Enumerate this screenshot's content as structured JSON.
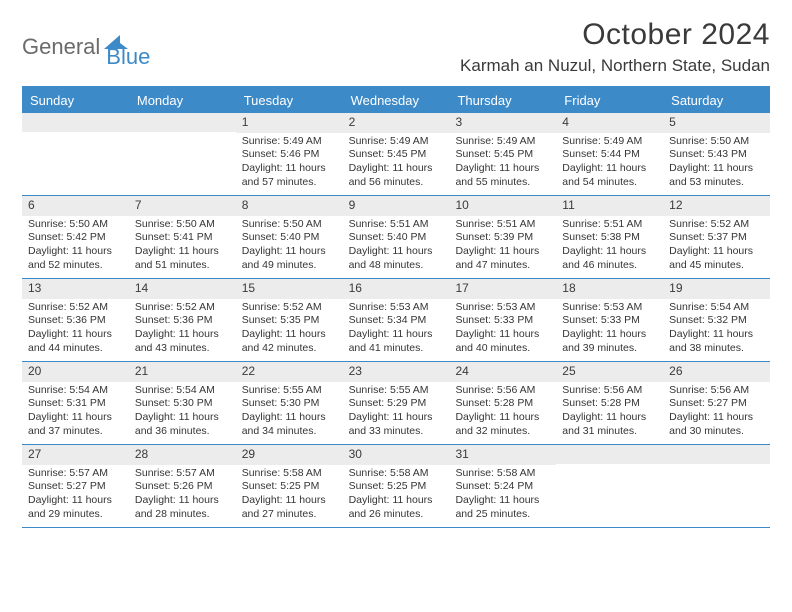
{
  "logo": {
    "part1": "General",
    "part2": "Blue"
  },
  "title": "October 2024",
  "location": "Karmah an Nuzul, Northern State, Sudan",
  "colors": {
    "accent": "#3d8ac9",
    "header_bg": "#3d8ac9",
    "header_text": "#ffffff",
    "daynum_bg": "#ececec",
    "text": "#353535",
    "border": "#3d8ac9"
  },
  "day_names": [
    "Sunday",
    "Monday",
    "Tuesday",
    "Wednesday",
    "Thursday",
    "Friday",
    "Saturday"
  ],
  "weeks": [
    [
      {
        "n": "",
        "sunrise": "",
        "sunset": "",
        "daylight": ""
      },
      {
        "n": "",
        "sunrise": "",
        "sunset": "",
        "daylight": ""
      },
      {
        "n": "1",
        "sunrise": "Sunrise: 5:49 AM",
        "sunset": "Sunset: 5:46 PM",
        "daylight": "Daylight: 11 hours and 57 minutes."
      },
      {
        "n": "2",
        "sunrise": "Sunrise: 5:49 AM",
        "sunset": "Sunset: 5:45 PM",
        "daylight": "Daylight: 11 hours and 56 minutes."
      },
      {
        "n": "3",
        "sunrise": "Sunrise: 5:49 AM",
        "sunset": "Sunset: 5:45 PM",
        "daylight": "Daylight: 11 hours and 55 minutes."
      },
      {
        "n": "4",
        "sunrise": "Sunrise: 5:49 AM",
        "sunset": "Sunset: 5:44 PM",
        "daylight": "Daylight: 11 hours and 54 minutes."
      },
      {
        "n": "5",
        "sunrise": "Sunrise: 5:50 AM",
        "sunset": "Sunset: 5:43 PM",
        "daylight": "Daylight: 11 hours and 53 minutes."
      }
    ],
    [
      {
        "n": "6",
        "sunrise": "Sunrise: 5:50 AM",
        "sunset": "Sunset: 5:42 PM",
        "daylight": "Daylight: 11 hours and 52 minutes."
      },
      {
        "n": "7",
        "sunrise": "Sunrise: 5:50 AM",
        "sunset": "Sunset: 5:41 PM",
        "daylight": "Daylight: 11 hours and 51 minutes."
      },
      {
        "n": "8",
        "sunrise": "Sunrise: 5:50 AM",
        "sunset": "Sunset: 5:40 PM",
        "daylight": "Daylight: 11 hours and 49 minutes."
      },
      {
        "n": "9",
        "sunrise": "Sunrise: 5:51 AM",
        "sunset": "Sunset: 5:40 PM",
        "daylight": "Daylight: 11 hours and 48 minutes."
      },
      {
        "n": "10",
        "sunrise": "Sunrise: 5:51 AM",
        "sunset": "Sunset: 5:39 PM",
        "daylight": "Daylight: 11 hours and 47 minutes."
      },
      {
        "n": "11",
        "sunrise": "Sunrise: 5:51 AM",
        "sunset": "Sunset: 5:38 PM",
        "daylight": "Daylight: 11 hours and 46 minutes."
      },
      {
        "n": "12",
        "sunrise": "Sunrise: 5:52 AM",
        "sunset": "Sunset: 5:37 PM",
        "daylight": "Daylight: 11 hours and 45 minutes."
      }
    ],
    [
      {
        "n": "13",
        "sunrise": "Sunrise: 5:52 AM",
        "sunset": "Sunset: 5:36 PM",
        "daylight": "Daylight: 11 hours and 44 minutes."
      },
      {
        "n": "14",
        "sunrise": "Sunrise: 5:52 AM",
        "sunset": "Sunset: 5:36 PM",
        "daylight": "Daylight: 11 hours and 43 minutes."
      },
      {
        "n": "15",
        "sunrise": "Sunrise: 5:52 AM",
        "sunset": "Sunset: 5:35 PM",
        "daylight": "Daylight: 11 hours and 42 minutes."
      },
      {
        "n": "16",
        "sunrise": "Sunrise: 5:53 AM",
        "sunset": "Sunset: 5:34 PM",
        "daylight": "Daylight: 11 hours and 41 minutes."
      },
      {
        "n": "17",
        "sunrise": "Sunrise: 5:53 AM",
        "sunset": "Sunset: 5:33 PM",
        "daylight": "Daylight: 11 hours and 40 minutes."
      },
      {
        "n": "18",
        "sunrise": "Sunrise: 5:53 AM",
        "sunset": "Sunset: 5:33 PM",
        "daylight": "Daylight: 11 hours and 39 minutes."
      },
      {
        "n": "19",
        "sunrise": "Sunrise: 5:54 AM",
        "sunset": "Sunset: 5:32 PM",
        "daylight": "Daylight: 11 hours and 38 minutes."
      }
    ],
    [
      {
        "n": "20",
        "sunrise": "Sunrise: 5:54 AM",
        "sunset": "Sunset: 5:31 PM",
        "daylight": "Daylight: 11 hours and 37 minutes."
      },
      {
        "n": "21",
        "sunrise": "Sunrise: 5:54 AM",
        "sunset": "Sunset: 5:30 PM",
        "daylight": "Daylight: 11 hours and 36 minutes."
      },
      {
        "n": "22",
        "sunrise": "Sunrise: 5:55 AM",
        "sunset": "Sunset: 5:30 PM",
        "daylight": "Daylight: 11 hours and 34 minutes."
      },
      {
        "n": "23",
        "sunrise": "Sunrise: 5:55 AM",
        "sunset": "Sunset: 5:29 PM",
        "daylight": "Daylight: 11 hours and 33 minutes."
      },
      {
        "n": "24",
        "sunrise": "Sunrise: 5:56 AM",
        "sunset": "Sunset: 5:28 PM",
        "daylight": "Daylight: 11 hours and 32 minutes."
      },
      {
        "n": "25",
        "sunrise": "Sunrise: 5:56 AM",
        "sunset": "Sunset: 5:28 PM",
        "daylight": "Daylight: 11 hours and 31 minutes."
      },
      {
        "n": "26",
        "sunrise": "Sunrise: 5:56 AM",
        "sunset": "Sunset: 5:27 PM",
        "daylight": "Daylight: 11 hours and 30 minutes."
      }
    ],
    [
      {
        "n": "27",
        "sunrise": "Sunrise: 5:57 AM",
        "sunset": "Sunset: 5:27 PM",
        "daylight": "Daylight: 11 hours and 29 minutes."
      },
      {
        "n": "28",
        "sunrise": "Sunrise: 5:57 AM",
        "sunset": "Sunset: 5:26 PM",
        "daylight": "Daylight: 11 hours and 28 minutes."
      },
      {
        "n": "29",
        "sunrise": "Sunrise: 5:58 AM",
        "sunset": "Sunset: 5:25 PM",
        "daylight": "Daylight: 11 hours and 27 minutes."
      },
      {
        "n": "30",
        "sunrise": "Sunrise: 5:58 AM",
        "sunset": "Sunset: 5:25 PM",
        "daylight": "Daylight: 11 hours and 26 minutes."
      },
      {
        "n": "31",
        "sunrise": "Sunrise: 5:58 AM",
        "sunset": "Sunset: 5:24 PM",
        "daylight": "Daylight: 11 hours and 25 minutes."
      },
      {
        "n": "",
        "sunrise": "",
        "sunset": "",
        "daylight": ""
      },
      {
        "n": "",
        "sunrise": "",
        "sunset": "",
        "daylight": ""
      }
    ]
  ]
}
